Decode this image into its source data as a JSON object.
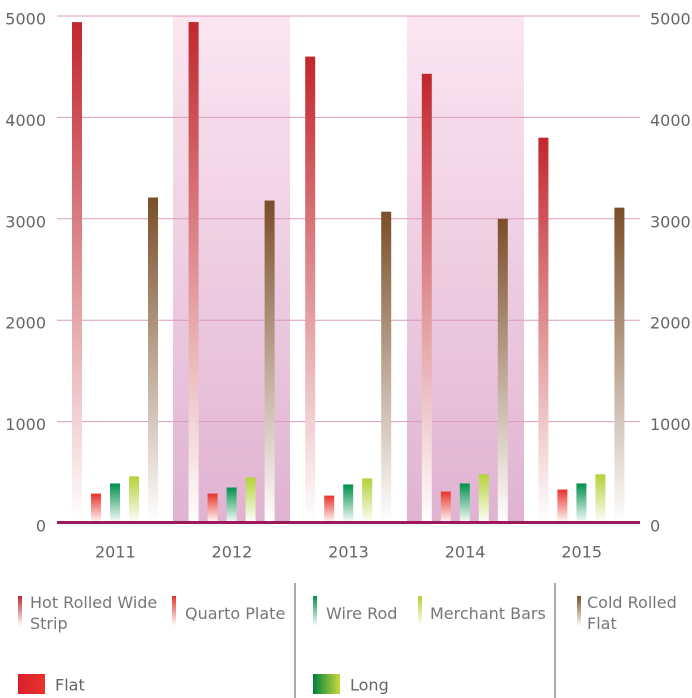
{
  "chart_data": {
    "type": "bar",
    "categories": [
      "2011",
      "2012",
      "2013",
      "2014",
      "2015"
    ],
    "series": [
      {
        "name": "Hot Rolled Wide Strip",
        "color": "#c1272d",
        "values": [
          4940,
          4940,
          4600,
          4430,
          3800
        ]
      },
      {
        "name": "Quarto Plate",
        "color": "#e8332a",
        "values": [
          290,
          290,
          270,
          310,
          330
        ]
      },
      {
        "name": "Wire Rod",
        "color": "#00904c",
        "values": [
          390,
          350,
          380,
          390,
          390
        ]
      },
      {
        "name": "Merchant Bars",
        "color": "#b3d236",
        "values": [
          460,
          450,
          440,
          480,
          480
        ]
      },
      {
        "name": "Cold Rolled Flat",
        "color": "#7a4e28",
        "values": [
          3210,
          3180,
          3070,
          3000,
          3110
        ]
      }
    ],
    "groups": [
      {
        "name": "Flat",
        "color": "#d9202e",
        "color2": "#e8332a"
      },
      {
        "name": "Long",
        "color": "#00803f",
        "color2": "#c8dc3a"
      }
    ],
    "ylim": [
      0,
      5000
    ],
    "yticks": [
      0,
      1000,
      2000,
      3000,
      4000,
      5000
    ],
    "grid": true
  }
}
